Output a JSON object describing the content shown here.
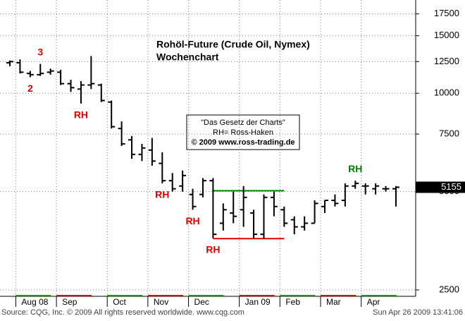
{
  "chart_data": {
    "type": "ohlc",
    "title": "Rohöl-Future (Crude Oil, Nymex)",
    "subtitle": "Wochenchart",
    "note_lines": [
      "\"Das Gesetz der Charts\"",
      "RH= Ross-Haken",
      "© 2009 www.ross-trading.de"
    ],
    "source": "Source: CQG, Inc. © 2009 All rights reserved worldwide. www.cqg.com",
    "timestamp": "Sun Apr 26 2009 13:41:06",
    "categories": [
      null,
      "Aug 08",
      null,
      null,
      null,
      "Sep",
      null,
      null,
      null,
      null,
      "Oct",
      null,
      null,
      null,
      "Nov",
      null,
      null,
      null,
      "Dec",
      null,
      null,
      null,
      null,
      "Jan 09",
      null,
      null,
      null,
      "Feb",
      null,
      null,
      null,
      "Mar",
      null,
      null,
      null,
      "Apr",
      null,
      null,
      null
    ],
    "open": [
      12400,
      12400,
      11500,
      11400,
      11600,
      11600,
      10700,
      10300,
      10600,
      10600,
      9400,
      7800,
      7200,
      6500,
      6700,
      6100,
      5400,
      5200,
      4900,
      4900,
      5400,
      4000,
      4300,
      4400,
      4300,
      3700,
      4800,
      4400,
      4100,
      3900,
      4000,
      4500,
      4700,
      4700,
      5200,
      5200,
      5100,
      5100,
      5100
    ],
    "high": [
      12600,
      12700,
      11700,
      12300,
      11900,
      11800,
      11000,
      10900,
      13000,
      10700,
      9500,
      8200,
      7400,
      7000,
      7300,
      6600,
      5700,
      5800,
      5100,
      5500,
      5500,
      4600,
      5000,
      5200,
      4400,
      4900,
      5000,
      4500,
      4200,
      4200,
      4700,
      4700,
      4900,
      5300,
      5400,
      5300,
      5300,
      5200,
      5200
    ],
    "low": [
      12100,
      11500,
      11200,
      11300,
      11400,
      10600,
      10100,
      9300,
      10300,
      9400,
      7800,
      6900,
      6300,
      6200,
      6000,
      5300,
      5000,
      5000,
      4400,
      4800,
      3600,
      3800,
      4000,
      3900,
      3600,
      3600,
      4200,
      3900,
      3700,
      3800,
      4000,
      4300,
      4500,
      4500,
      5100,
      4900,
      4900,
      5000,
      4500
    ],
    "close": [
      12500,
      11600,
      11400,
      11500,
      11700,
      10700,
      10400,
      10600,
      10700,
      9500,
      7900,
      7000,
      6500,
      6800,
      6200,
      5400,
      5100,
      5600,
      4500,
      5400,
      3700,
      4400,
      4200,
      4800,
      3700,
      4800,
      4500,
      4000,
      3900,
      4000,
      4600,
      4700,
      4600,
      5200,
      5300,
      5200,
      5200,
      5100,
      5155
    ],
    "color": "#000000",
    "ylim": [
      2390,
      19300
    ],
    "yticks": [
      2500,
      5000,
      7500,
      10000,
      12500,
      15000,
      17500
    ],
    "log_scale": true,
    "grid": true,
    "levels": [
      {
        "value": 5030,
        "color": "#008000",
        "bars": [
          20,
          27
        ]
      },
      {
        "value": 3590,
        "color": "#e00000",
        "bars": [
          20,
          27
        ]
      }
    ],
    "annotations": [
      {
        "text": "2",
        "bar": 2,
        "position": "below",
        "color": "#e00000"
      },
      {
        "text": "3",
        "bar": 3,
        "position": "above",
        "color": "#e00000"
      },
      {
        "text": "RH",
        "bar": 7,
        "position": "below",
        "color": "#e00000"
      },
      {
        "text": "RH",
        "bar": 15,
        "position": "below",
        "color": "#e00000"
      },
      {
        "text": "RH",
        "bar": 18,
        "position": "below",
        "color": "#e00000"
      },
      {
        "text": "RH",
        "bar": 20,
        "position": "below",
        "color": "#e00000"
      },
      {
        "text": "RH",
        "bar": 34,
        "position": "above",
        "color": "#008000"
      }
    ]
  }
}
